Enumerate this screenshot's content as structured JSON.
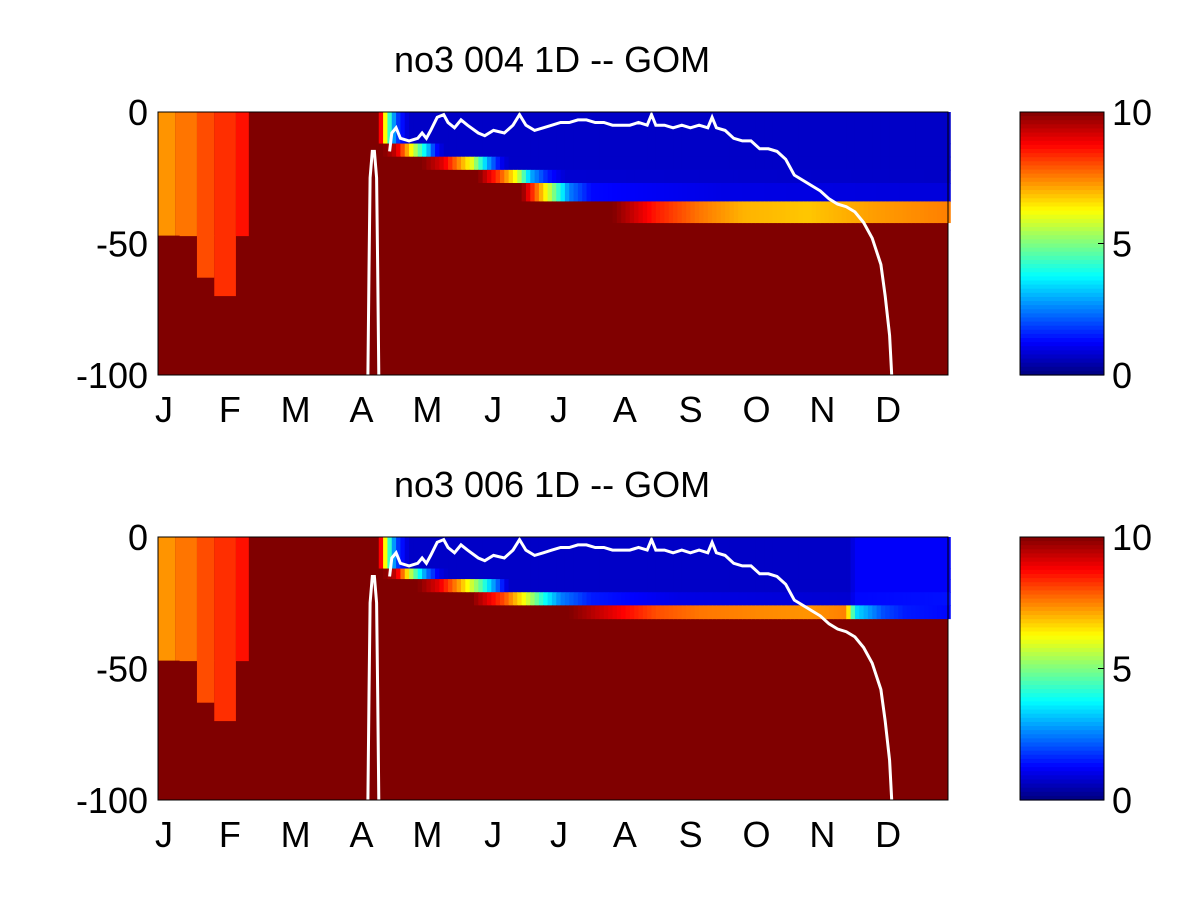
{
  "chart_data": [
    {
      "type": "heatmap",
      "title": "no3  004 1D   -- GOM",
      "x_ticks": [
        "J",
        "F",
        "M",
        "A",
        "M",
        "J",
        "J",
        "A",
        "S",
        "O",
        "N",
        "D"
      ],
      "y_ticks": [
        "0",
        "-50",
        "-100"
      ],
      "ylim": [
        -100,
        0
      ],
      "xlim": [
        0,
        365
      ],
      "colorbar": {
        "ticks": [
          "10",
          "5",
          "0"
        ],
        "range": [
          0,
          10
        ],
        "colormap": "jet"
      },
      "overlay_line_color": "#ffffff",
      "bottom_layer_depth": -42,
      "layers": [
        {
          "top": 0,
          "bottom": -12,
          "pts": [
            [
              90,
              10
            ],
            [
              102,
              10
            ],
            [
              106,
              5
            ],
            [
              110,
              2
            ],
            [
              116,
              0.7
            ],
            [
              365,
              0.7
            ]
          ]
        },
        {
          "top": -12,
          "bottom": -17,
          "pts": [
            [
              90,
              10
            ],
            [
              104,
              10
            ],
            [
              110,
              9.3
            ],
            [
              120,
              5
            ],
            [
              125,
              3
            ],
            [
              128,
              1.5
            ],
            [
              132,
              0.7
            ],
            [
              365,
              0.7
            ]
          ]
        },
        {
          "top": -17,
          "bottom": -22,
          "pts": [
            [
              90,
              10
            ],
            [
              122,
              10
            ],
            [
              132,
              9
            ],
            [
              145,
              6
            ],
            [
              152,
              3
            ],
            [
              158,
              1.2
            ],
            [
              162,
              0.7
            ],
            [
              365,
              0.7
            ]
          ]
        },
        {
          "top": -22,
          "bottom": -27,
          "pts": [
            [
              90,
              10
            ],
            [
              148,
              10
            ],
            [
              158,
              8
            ],
            [
              166,
              6
            ],
            [
              172,
              3
            ],
            [
              180,
              1.5
            ],
            [
              188,
              0.8
            ],
            [
              365,
              0.7
            ]
          ]
        },
        {
          "top": -27,
          "bottom": -34,
          "pts": [
            [
              90,
              10
            ],
            [
              168,
              10
            ],
            [
              180,
              6
            ],
            [
              190,
              2.5
            ],
            [
              200,
              1.3
            ],
            [
              260,
              1.0
            ],
            [
              365,
              0.9
            ]
          ]
        },
        {
          "top": -34,
          "bottom": -42,
          "pts": [
            [
              90,
              10
            ],
            [
              210,
              10
            ],
            [
              230,
              8.5
            ],
            [
              250,
              7.6
            ],
            [
              270,
              7
            ],
            [
              300,
              6.8
            ],
            [
              330,
              7.2
            ],
            [
              365,
              7.5
            ]
          ]
        }
      ],
      "overlay_line": [
        [
          107,
          -15
        ],
        [
          108,
          -8
        ],
        [
          110,
          -6
        ],
        [
          112,
          -10
        ],
        [
          116,
          -11
        ],
        [
          120,
          -10
        ],
        [
          122,
          -8
        ],
        [
          124,
          -10
        ],
        [
          126,
          -7
        ],
        [
          129,
          -2
        ],
        [
          132,
          -1
        ],
        [
          134,
          -4
        ],
        [
          137,
          -6
        ],
        [
          140,
          -3
        ],
        [
          143,
          -5
        ],
        [
          148,
          -8
        ],
        [
          151,
          -9
        ],
        [
          155,
          -7
        ],
        [
          160,
          -8
        ],
        [
          164,
          -5
        ],
        [
          167,
          -1
        ],
        [
          170,
          -5
        ],
        [
          174,
          -7
        ],
        [
          178,
          -6
        ],
        [
          182,
          -5
        ],
        [
          186,
          -4
        ],
        [
          190,
          -4
        ],
        [
          194,
          -3
        ],
        [
          198,
          -3
        ],
        [
          202,
          -4
        ],
        [
          206,
          -4
        ],
        [
          210,
          -5
        ],
        [
          214,
          -5
        ],
        [
          218,
          -5
        ],
        [
          222,
          -4
        ],
        [
          226,
          -5
        ],
        [
          228,
          -1
        ],
        [
          230,
          -5
        ],
        [
          234,
          -5
        ],
        [
          238,
          -6
        ],
        [
          242,
          -5
        ],
        [
          246,
          -6
        ],
        [
          250,
          -5
        ],
        [
          254,
          -6
        ],
        [
          256,
          -2
        ],
        [
          258,
          -6
        ],
        [
          262,
          -7
        ],
        [
          266,
          -10
        ],
        [
          270,
          -11
        ],
        [
          274,
          -11
        ],
        [
          278,
          -14
        ],
        [
          282,
          -14
        ],
        [
          286,
          -15
        ],
        [
          290,
          -18
        ],
        [
          294,
          -24
        ],
        [
          298,
          -26
        ],
        [
          302,
          -28
        ],
        [
          306,
          -30
        ],
        [
          310,
          -33
        ],
        [
          314,
          -35
        ],
        [
          318,
          -36
        ],
        [
          322,
          -38
        ],
        [
          326,
          -42
        ],
        [
          330,
          -48
        ],
        [
          334,
          -58
        ],
        [
          336,
          -70
        ],
        [
          338,
          -85
        ],
        [
          339,
          -100
        ]
      ],
      "overlay_line_secondary": [
        [
          97,
          -100
        ],
        [
          97.5,
          -60
        ],
        [
          98,
          -25
        ],
        [
          99,
          -15
        ],
        [
          100,
          -15
        ],
        [
          101,
          -25
        ],
        [
          101.5,
          -60
        ],
        [
          102,
          -100
        ]
      ]
    },
    {
      "type": "heatmap",
      "title": "no3  006 1D   -- GOM",
      "x_ticks": [
        "J",
        "F",
        "M",
        "A",
        "M",
        "J",
        "J",
        "A",
        "S",
        "O",
        "N",
        "D"
      ],
      "y_ticks": [
        "0",
        "-50",
        "-100"
      ],
      "ylim": [
        -100,
        0
      ],
      "xlim": [
        0,
        365
      ],
      "colorbar": {
        "ticks": [
          "10",
          "5",
          "0"
        ],
        "range": [
          0,
          10
        ],
        "colormap": "jet"
      },
      "overlay_line_color": "#ffffff",
      "bottom_layer_depth": -31,
      "layers": [
        {
          "top": 0,
          "bottom": -12,
          "pts": [
            [
              90,
              10
            ],
            [
              102,
              10
            ],
            [
              106,
              5
            ],
            [
              110,
              2
            ],
            [
              116,
              0.7
            ],
            [
              320,
              0.7
            ],
            [
              322,
              1.2
            ],
            [
              365,
              1.2
            ]
          ]
        },
        {
          "top": -12,
          "bottom": -16,
          "pts": [
            [
              90,
              10
            ],
            [
              104,
              10
            ],
            [
              110,
              9.3
            ],
            [
              118,
              5
            ],
            [
              124,
              2.5
            ],
            [
              130,
              1
            ],
            [
              134,
              0.7
            ],
            [
              320,
              0.7
            ],
            [
              322,
              1.2
            ],
            [
              365,
              1.2
            ]
          ]
        },
        {
          "top": -16,
          "bottom": -21,
          "pts": [
            [
              90,
              10
            ],
            [
              120,
              10
            ],
            [
              130,
              9
            ],
            [
              140,
              7
            ],
            [
              148,
              5
            ],
            [
              156,
              2.5
            ],
            [
              160,
              1.2
            ],
            [
              162,
              0.7
            ],
            [
              320,
              0.7
            ],
            [
              322,
              1.2
            ],
            [
              365,
              1.2
            ]
          ]
        },
        {
          "top": -21,
          "bottom": -26,
          "pts": [
            [
              90,
              10
            ],
            [
              145,
              10
            ],
            [
              160,
              8
            ],
            [
              170,
              6
            ],
            [
              178,
              4
            ],
            [
              186,
              2.5
            ],
            [
              200,
              1.5
            ],
            [
              240,
              1.0
            ],
            [
              320,
              0.8
            ],
            [
              322,
              1.3
            ],
            [
              365,
              1.4
            ]
          ]
        },
        {
          "top": -26,
          "bottom": -31,
          "pts": [
            [
              90,
              10
            ],
            [
              190,
              10
            ],
            [
              210,
              9
            ],
            [
              230,
              8
            ],
            [
              250,
              7.6
            ],
            [
              280,
              7.4
            ],
            [
              300,
              7.3
            ],
            [
              318,
              7.5
            ],
            [
              322,
              3.5
            ],
            [
              335,
              2
            ],
            [
              345,
              1.5
            ],
            [
              365,
              1.3
            ]
          ]
        }
      ],
      "overlay_line": [
        [
          107,
          -15
        ],
        [
          108,
          -8
        ],
        [
          110,
          -6
        ],
        [
          112,
          -10
        ],
        [
          116,
          -11
        ],
        [
          120,
          -10
        ],
        [
          122,
          -8
        ],
        [
          124,
          -10
        ],
        [
          126,
          -7
        ],
        [
          129,
          -2
        ],
        [
          132,
          -1
        ],
        [
          134,
          -4
        ],
        [
          137,
          -6
        ],
        [
          140,
          -3
        ],
        [
          143,
          -5
        ],
        [
          148,
          -8
        ],
        [
          151,
          -9
        ],
        [
          155,
          -7
        ],
        [
          160,
          -8
        ],
        [
          164,
          -5
        ],
        [
          167,
          -1
        ],
        [
          170,
          -5
        ],
        [
          174,
          -7
        ],
        [
          178,
          -6
        ],
        [
          182,
          -5
        ],
        [
          186,
          -4
        ],
        [
          190,
          -4
        ],
        [
          194,
          -3
        ],
        [
          198,
          -3
        ],
        [
          202,
          -4
        ],
        [
          206,
          -4
        ],
        [
          210,
          -5
        ],
        [
          214,
          -5
        ],
        [
          218,
          -5
        ],
        [
          222,
          -4
        ],
        [
          226,
          -5
        ],
        [
          228,
          -1
        ],
        [
          230,
          -5
        ],
        [
          234,
          -5
        ],
        [
          238,
          -6
        ],
        [
          242,
          -5
        ],
        [
          246,
          -6
        ],
        [
          250,
          -5
        ],
        [
          254,
          -6
        ],
        [
          256,
          -2
        ],
        [
          258,
          -6
        ],
        [
          262,
          -7
        ],
        [
          266,
          -10
        ],
        [
          270,
          -11
        ],
        [
          274,
          -11
        ],
        [
          278,
          -14
        ],
        [
          282,
          -14
        ],
        [
          286,
          -15
        ],
        [
          290,
          -18
        ],
        [
          294,
          -24
        ],
        [
          298,
          -26
        ],
        [
          302,
          -28
        ],
        [
          306,
          -30
        ],
        [
          310,
          -33
        ],
        [
          314,
          -35
        ],
        [
          318,
          -36
        ],
        [
          322,
          -38
        ],
        [
          326,
          -42
        ],
        [
          330,
          -48
        ],
        [
          334,
          -58
        ],
        [
          336,
          -70
        ],
        [
          338,
          -85
        ],
        [
          339,
          -100
        ]
      ],
      "overlay_line_secondary": [
        [
          97,
          -100
        ],
        [
          97.5,
          -60
        ],
        [
          98,
          -25
        ],
        [
          99,
          -15
        ],
        [
          100,
          -15
        ],
        [
          101,
          -25
        ],
        [
          101.5,
          -60
        ],
        [
          102,
          -100
        ]
      ]
    }
  ]
}
